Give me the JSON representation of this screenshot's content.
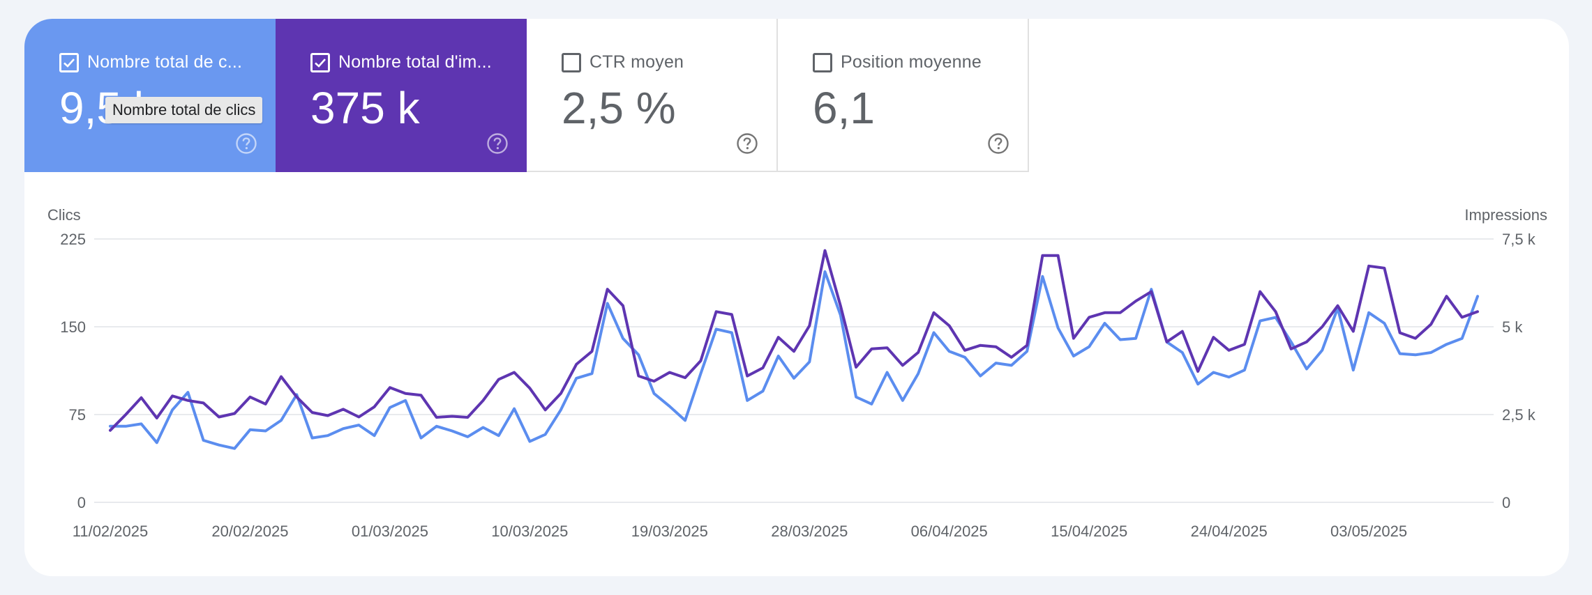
{
  "metrics": {
    "clicks": {
      "label": "Nombre total de c...",
      "value": "9,5 k",
      "checked": true
    },
    "impressions": {
      "label": "Nombre total d'im...",
      "value": "375 k",
      "checked": true
    },
    "ctr": {
      "label": "CTR moyen",
      "value": "2,5 %",
      "checked": false
    },
    "position": {
      "label": "Position moyenne",
      "value": "6,1",
      "checked": false
    }
  },
  "tooltip": {
    "text": "Nombre total de clics"
  },
  "colors": {
    "clicks": "#5b8def",
    "impressions": "#5e35b1",
    "grid": "#e8eaed"
  },
  "chart_data": {
    "type": "line",
    "ylabel_left": "Clics",
    "ylabel_right": "Impressions",
    "ylim_left": [
      0,
      225
    ],
    "ylim_right": [
      0,
      7500
    ],
    "yticks_left": [
      "0",
      "75",
      "150",
      "225"
    ],
    "yticks_right": [
      "0",
      "2,5 k",
      "5 k",
      "7,5 k"
    ],
    "x_tick_labels": [
      "11/02/2025",
      "20/02/2025",
      "01/03/2025",
      "10/03/2025",
      "19/03/2025",
      "28/03/2025",
      "06/04/2025",
      "15/04/2025",
      "24/04/2025",
      "03/05/2025"
    ],
    "x_tick_indices": [
      0,
      9,
      18,
      27,
      36,
      45,
      54,
      63,
      72,
      81
    ],
    "series": [
      {
        "name": "Clics",
        "axis": "left",
        "values": [
          65,
          65,
          67,
          51,
          79,
          94,
          53,
          49,
          46,
          62,
          61,
          70,
          92,
          55,
          57,
          63,
          66,
          57,
          81,
          87,
          55,
          65,
          61,
          56,
          64,
          57,
          80,
          52,
          58,
          79,
          106,
          110,
          170,
          140,
          126,
          93,
          82,
          70,
          110,
          148,
          145,
          87,
          95,
          125,
          106,
          120,
          197,
          160,
          90,
          84,
          111,
          87,
          110,
          145,
          129,
          124,
          108,
          119,
          117,
          129,
          193,
          149,
          125,
          133,
          153,
          139,
          140,
          182,
          137,
          128,
          101,
          111,
          107,
          113,
          155,
          158,
          137,
          114,
          130,
          166,
          113,
          162,
          153,
          127,
          126,
          128,
          135,
          140,
          176
        ]
      },
      {
        "name": "Impressions",
        "axis": "right",
        "values": [
          2050,
          2500,
          2980,
          2400,
          3030,
          2900,
          2830,
          2430,
          2530,
          3000,
          2800,
          3580,
          3000,
          2560,
          2470,
          2650,
          2430,
          2720,
          3270,
          3100,
          3050,
          2420,
          2450,
          2420,
          2900,
          3500,
          3700,
          3250,
          2630,
          3100,
          3930,
          4300,
          6070,
          5600,
          3600,
          3450,
          3700,
          3550,
          4030,
          5430,
          5350,
          3600,
          3830,
          4700,
          4300,
          5030,
          7170,
          5600,
          3850,
          4370,
          4400,
          3900,
          4270,
          5400,
          5030,
          4330,
          4470,
          4430,
          4130,
          4470,
          7030,
          7030,
          4670,
          5270,
          5400,
          5400,
          5730,
          6000,
          4570,
          4870,
          3730,
          4700,
          4330,
          4500,
          6000,
          5430,
          4370,
          4570,
          5000,
          5600,
          4870,
          6730,
          6670,
          4830,
          4670,
          5070,
          5870,
          5270,
          5430
        ]
      }
    ]
  }
}
